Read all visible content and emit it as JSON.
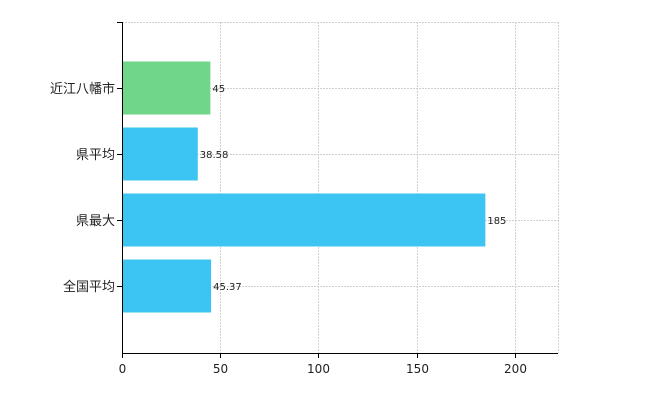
{
  "chart_data": {
    "type": "bar",
    "orientation": "horizontal",
    "categories": [
      "近江八幡市",
      "県平均",
      "県最大",
      "全国平均"
    ],
    "values": [
      45,
      38.58,
      185,
      45.37
    ],
    "value_labels": [
      "45",
      "38.58",
      "185",
      "45.37"
    ],
    "bar_colors": [
      "#6fd68a",
      "#3cc4f2",
      "#3cc4f2",
      "#3cc4f2"
    ],
    "xlim": [
      0,
      222
    ],
    "xticks": [
      0,
      50,
      100,
      150,
      200
    ],
    "xtick_labels": [
      "0",
      "50",
      "100",
      "150",
      "200"
    ],
    "grid": true,
    "title": "",
    "xlabel": "",
    "ylabel": ""
  }
}
